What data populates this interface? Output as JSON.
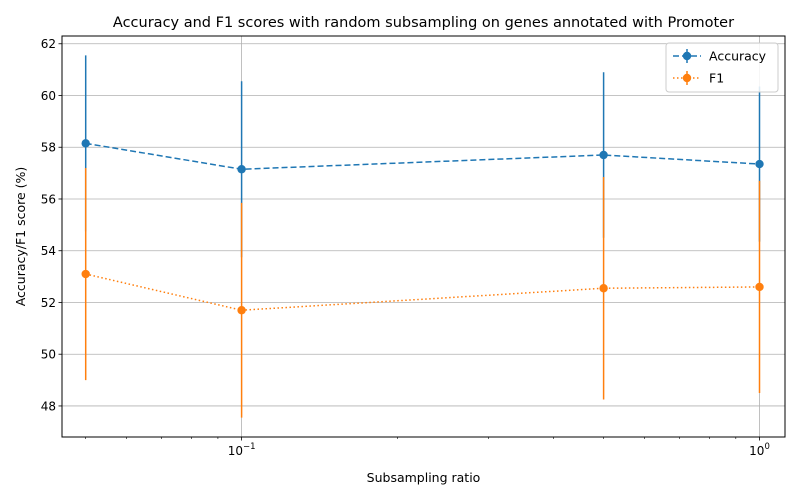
{
  "chart_data": {
    "type": "line",
    "title": "Accuracy and F1 scores with random subsampling on genes annotated with Promoter",
    "xlabel": "Subsampling ratio",
    "ylabel": "Accuracy/F1 score (%)",
    "x_scale": "log",
    "xlim": [
      0.045,
      1.12
    ],
    "ylim": [
      46.8,
      62.3
    ],
    "x_major_ticks": [
      {
        "value": 0.1,
        "base": "10",
        "exp": "−1"
      },
      {
        "value": 1,
        "base": "10",
        "exp": "0"
      }
    ],
    "x_minor_ticks": [
      0.05,
      0.06,
      0.07,
      0.08,
      0.09,
      0.2,
      0.3,
      0.4,
      0.5,
      0.6,
      0.7,
      0.8,
      0.9
    ],
    "y_ticks": [
      48,
      50,
      52,
      54,
      56,
      58,
      60,
      62
    ],
    "grid": true,
    "legend_position": "top-right",
    "x": [
      0.05,
      0.1,
      0.5,
      1.0
    ],
    "series": [
      {
        "name": "Accuracy",
        "color": "#1f77b4",
        "linestyle": "dashed",
        "marker": "circle",
        "values": [
          58.15,
          57.15,
          57.7,
          57.35
        ],
        "errors": [
          3.4,
          3.4,
          3.2,
          3.0
        ]
      },
      {
        "name": "F1",
        "color": "#ff7f0e",
        "linestyle": "dotted",
        "marker": "circle",
        "values": [
          53.1,
          51.7,
          52.55,
          52.6
        ],
        "errors": [
          4.1,
          4.15,
          4.3,
          4.1
        ]
      }
    ]
  }
}
